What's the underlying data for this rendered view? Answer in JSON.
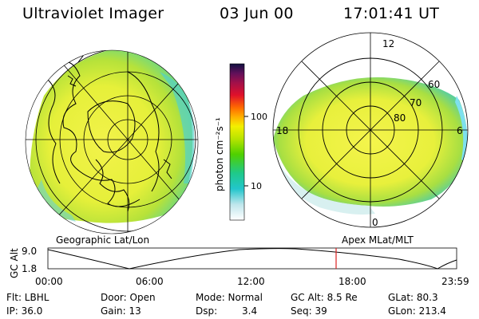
{
  "header": {
    "instrument": "Ultraviolet Imager",
    "date": "03 Jun 00",
    "time": "17:01:41 UT"
  },
  "colorbar": {
    "ticks": [
      "100",
      "10"
    ],
    "unit_label": "photon cm⁻²s⁻¹"
  },
  "left_panel": {
    "label": "Geographic Lat/Lon"
  },
  "right_panel": {
    "label": "Apex MLat/MLT",
    "mlt_labels": {
      "top": "12",
      "left": "18",
      "right": "6",
      "bottom": "0"
    },
    "lat_labels": [
      "80",
      "70",
      "60"
    ]
  },
  "altitude_plot": {
    "ylabel": "GC Alt",
    "yticks": [
      "9.0",
      "1.8"
    ],
    "xticks": [
      "00:00",
      "06:00",
      "12:00",
      "18:00",
      "23:59"
    ],
    "current_time_marker_color": "#dd2222"
  },
  "info": {
    "flt": "Flt: LBHL",
    "ip": "IP: 36.0",
    "door": "Door: Open",
    "gain": "Gain: 13",
    "mode": "Mode: Normal",
    "dsp": "Dsp:",
    "dsp_value": "3.4",
    "gc_alt": "GC Alt: 8.5 Re",
    "seq": "Seq: 39",
    "glat": "GLat: 80.3",
    "glon": "GLon: 213.4"
  }
}
